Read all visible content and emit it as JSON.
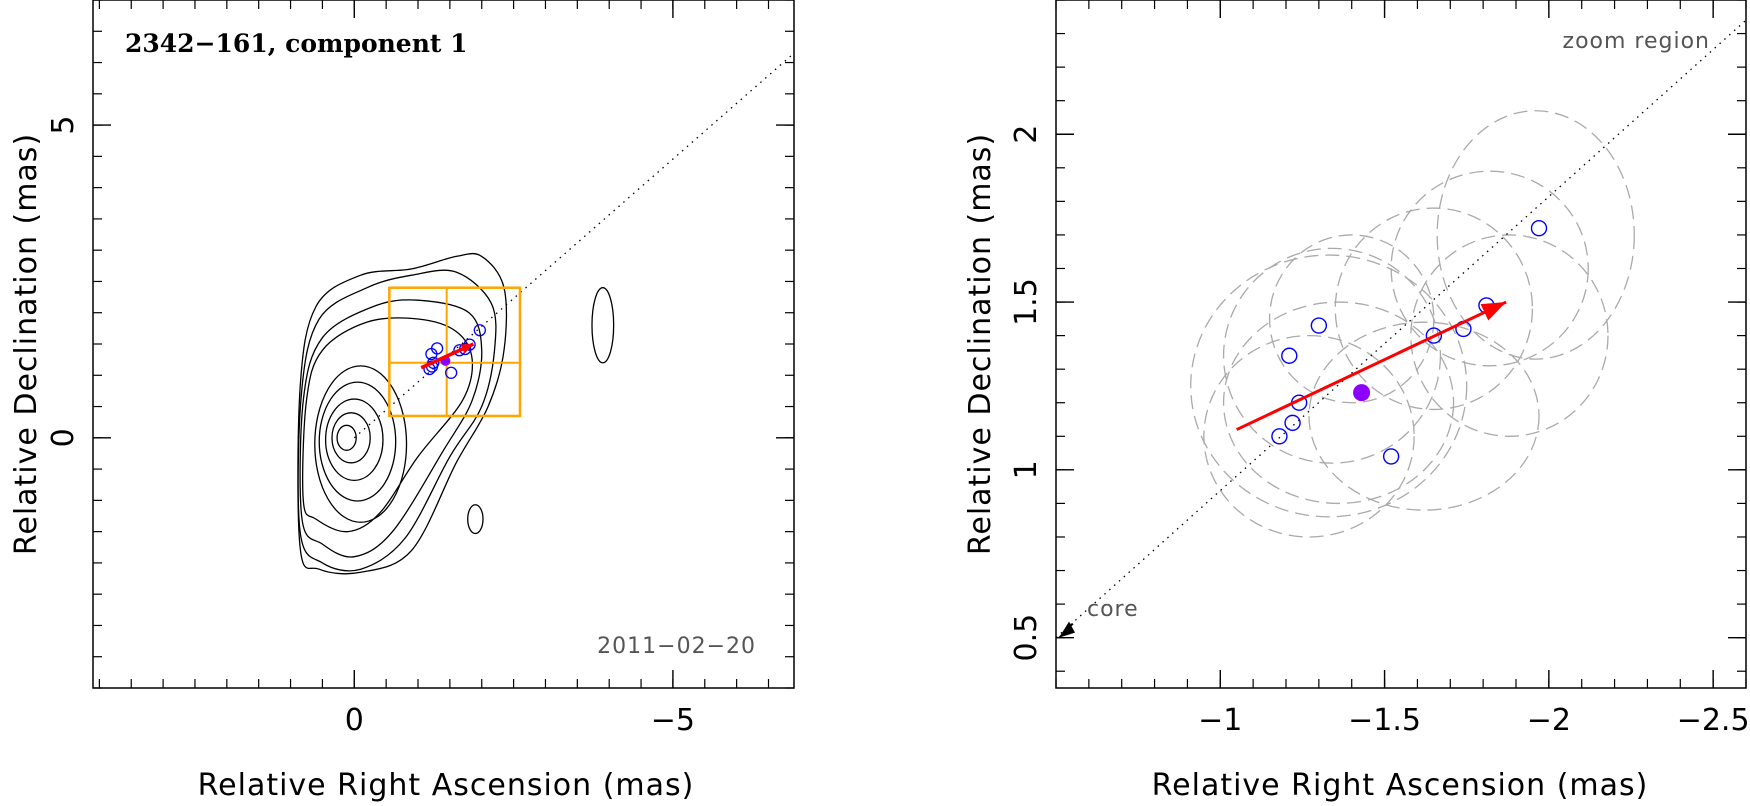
{
  "colors": {
    "arrow": "#ff0000",
    "epoch_marker": "#8b00ff",
    "component_circle": "#0000ff",
    "zoom_box": "#ffa500",
    "contour": "#000000",
    "error_ellipse": "#aaaaaa"
  },
  "chart_data": [
    {
      "type": "scatter",
      "panel": "left",
      "title": "2342−161, component 1",
      "annotation": "2011−02−20",
      "xlabel": "Relative Right Ascension (mas)",
      "ylabel": "Relative Declination (mas)",
      "xlim": [
        4.1,
        -6.9
      ],
      "ylim": [
        -4.0,
        7.0
      ],
      "x_ticks": [
        0,
        -5
      ],
      "x_tick_labels": [
        "0",
        "−5"
      ],
      "y_ticks": [
        0,
        5
      ],
      "y_tick_labels": [
        "0",
        "5"
      ],
      "contours": {
        "core": [
          0,
          0
        ],
        "levels": [
          {
            "ra": 0.12,
            "dec": 0.0,
            "rx": 0.15,
            "ry": 0.2
          },
          {
            "ra": 0.05,
            "dec": 0.0,
            "rx": 0.3,
            "ry": 0.4
          },
          {
            "ra": 0.0,
            "dec": -0.03,
            "rx": 0.45,
            "ry": 0.65
          },
          {
            "ra": -0.05,
            "dec": -0.06,
            "rx": 0.6,
            "ry": 0.95
          },
          {
            "ra": -0.1,
            "dec": -0.1,
            "rx": 0.72,
            "ry": 1.25
          }
        ],
        "outer_levels": [
          [
            [
              0.8,
              -1.0
            ],
            [
              0.75,
              0.6
            ],
            [
              0.5,
              1.4
            ],
            [
              -0.2,
              1.85
            ],
            [
              -1.0,
              1.9
            ],
            [
              -1.6,
              1.7
            ],
            [
              -1.85,
              1.25
            ],
            [
              -1.7,
              0.6
            ],
            [
              -1.0,
              -0.3
            ],
            [
              -0.4,
              -1.2
            ],
            [
              0.1,
              -1.5
            ],
            [
              0.6,
              -1.3
            ]
          ],
          [
            [
              0.82,
              -1.3
            ],
            [
              0.8,
              0.6
            ],
            [
              0.5,
              1.6
            ],
            [
              -0.3,
              2.1
            ],
            [
              -1.0,
              2.2
            ],
            [
              -1.8,
              2.0
            ],
            [
              -2.0,
              1.4
            ],
            [
              -1.85,
              0.6
            ],
            [
              -1.4,
              -0.2
            ],
            [
              -0.6,
              -1.5
            ],
            [
              0.0,
              -1.9
            ],
            [
              0.5,
              -1.7
            ]
          ],
          [
            [
              0.85,
              -1.5
            ],
            [
              0.83,
              0.7
            ],
            [
              0.55,
              1.9
            ],
            [
              -0.2,
              2.4
            ],
            [
              -0.9,
              2.6
            ],
            [
              -1.6,
              2.65
            ],
            [
              -2.15,
              2.15
            ],
            [
              -2.2,
              1.4
            ],
            [
              -2.0,
              0.5
            ],
            [
              -1.5,
              -0.3
            ],
            [
              -0.8,
              -1.6
            ],
            [
              -0.1,
              -2.1
            ],
            [
              0.5,
              -2.0
            ]
          ],
          [
            [
              0.85,
              -1.75
            ],
            [
              0.85,
              0.8
            ],
            [
              0.6,
              2.1
            ],
            [
              -0.1,
              2.6
            ],
            [
              -0.9,
              2.7
            ],
            [
              -1.6,
              2.9
            ],
            [
              -2.0,
              2.9
            ],
            [
              -2.35,
              2.4
            ],
            [
              -2.35,
              1.4
            ],
            [
              -2.1,
              0.5
            ],
            [
              -1.6,
              -0.4
            ],
            [
              -0.9,
              -1.8
            ],
            [
              -0.1,
              -2.15
            ],
            [
              0.55,
              -2.1
            ]
          ]
        ],
        "islands": [
          {
            "ra": -3.9,
            "dec": 1.8,
            "rx": 0.17,
            "ry": 0.6
          },
          {
            "ra": -1.9,
            "dec": -1.3,
            "rx": 0.12,
            "ry": 0.23
          }
        ]
      },
      "zoom_box": {
        "ra_range": [
          -0.55,
          -2.6
        ],
        "dec_range": [
          0.35,
          2.4
        ],
        "ra_divider": -1.45,
        "dec_divider": 1.2
      },
      "ridge_line": {
        "from": [
          0.0,
          0.0
        ],
        "to": [
          -6.9,
          6.15
        ]
      },
      "positions": [
        {
          "ra": -1.18,
          "dec": 1.1
        },
        {
          "ra": -1.22,
          "dec": 1.14
        },
        {
          "ra": -1.24,
          "dec": 1.2
        },
        {
          "ra": -1.21,
          "dec": 1.34
        },
        {
          "ra": -1.3,
          "dec": 1.43
        },
        {
          "ra": -1.52,
          "dec": 1.04
        },
        {
          "ra": -1.65,
          "dec": 1.4
        },
        {
          "ra": -1.74,
          "dec": 1.42
        },
        {
          "ra": -1.81,
          "dec": 1.49
        },
        {
          "ra": -1.97,
          "dec": 1.72
        }
      ],
      "mean_position": {
        "ra": -1.43,
        "dec": 1.23
      },
      "velocity_arrow": {
        "from": [
          -1.05,
          1.12
        ],
        "to": [
          -1.87,
          1.5
        ]
      }
    },
    {
      "type": "scatter",
      "panel": "right",
      "annotation_top": "zoom region",
      "annotation_core": "core",
      "xlabel": "Relative Right Ascension (mas)",
      "ylabel": "Relative Declination (mas)",
      "xlim": [
        -0.5,
        -2.6
      ],
      "ylim": [
        0.35,
        2.4
      ],
      "x_ticks": [
        -1,
        -1.5,
        -2,
        -2.5
      ],
      "x_tick_labels": [
        "−1",
        "−1.5",
        "−2",
        "−2.5"
      ],
      "y_ticks": [
        0.5,
        1,
        1.5,
        2
      ],
      "y_tick_labels": [
        "0.5",
        "1",
        "1.5",
        "2"
      ],
      "ridge_line": {
        "from": [
          -0.5,
          0.5
        ],
        "to": [
          -2.6,
          2.34
        ]
      },
      "positions": [
        {
          "ra": -1.18,
          "dec": 1.1
        },
        {
          "ra": -1.22,
          "dec": 1.14
        },
        {
          "ra": -1.24,
          "dec": 1.2
        },
        {
          "ra": -1.21,
          "dec": 1.34
        },
        {
          "ra": -1.3,
          "dec": 1.43
        },
        {
          "ra": -1.52,
          "dec": 1.04
        },
        {
          "ra": -1.65,
          "dec": 1.4
        },
        {
          "ra": -1.74,
          "dec": 1.42
        },
        {
          "ra": -1.81,
          "dec": 1.49
        },
        {
          "ra": -1.97,
          "dec": 1.72
        }
      ],
      "error_ellipses": [
        {
          "ra": -1.33,
          "dec": 1.25,
          "rx": 0.42,
          "ry": 0.39
        },
        {
          "ra": -1.27,
          "dec": 1.1,
          "rx": 0.32,
          "ry": 0.3
        },
        {
          "ra": -1.36,
          "dec": 1.2,
          "rx": 0.35,
          "ry": 0.3
        },
        {
          "ra": -1.34,
          "dec": 1.34,
          "rx": 0.33,
          "ry": 0.32
        },
        {
          "ra": -1.4,
          "dec": 1.45,
          "rx": 0.25,
          "ry": 0.25
        },
        {
          "ra": -1.62,
          "dec": 1.16,
          "rx": 0.35,
          "ry": 0.28
        },
        {
          "ra": -1.65,
          "dec": 1.48,
          "rx": 0.3,
          "ry": 0.3
        },
        {
          "ra": -1.82,
          "dec": 1.6,
          "rx": 0.3,
          "ry": 0.29
        },
        {
          "ra": -1.88,
          "dec": 1.4,
          "rx": 0.3,
          "ry": 0.3
        },
        {
          "ra": -1.96,
          "dec": 1.7,
          "rx": 0.3,
          "ry": 0.37
        }
      ],
      "mean_position": {
        "ra": -1.43,
        "dec": 1.23
      },
      "velocity_arrow": {
        "from": [
          -1.05,
          1.12
        ],
        "to": [
          -1.87,
          1.5
        ]
      }
    }
  ]
}
